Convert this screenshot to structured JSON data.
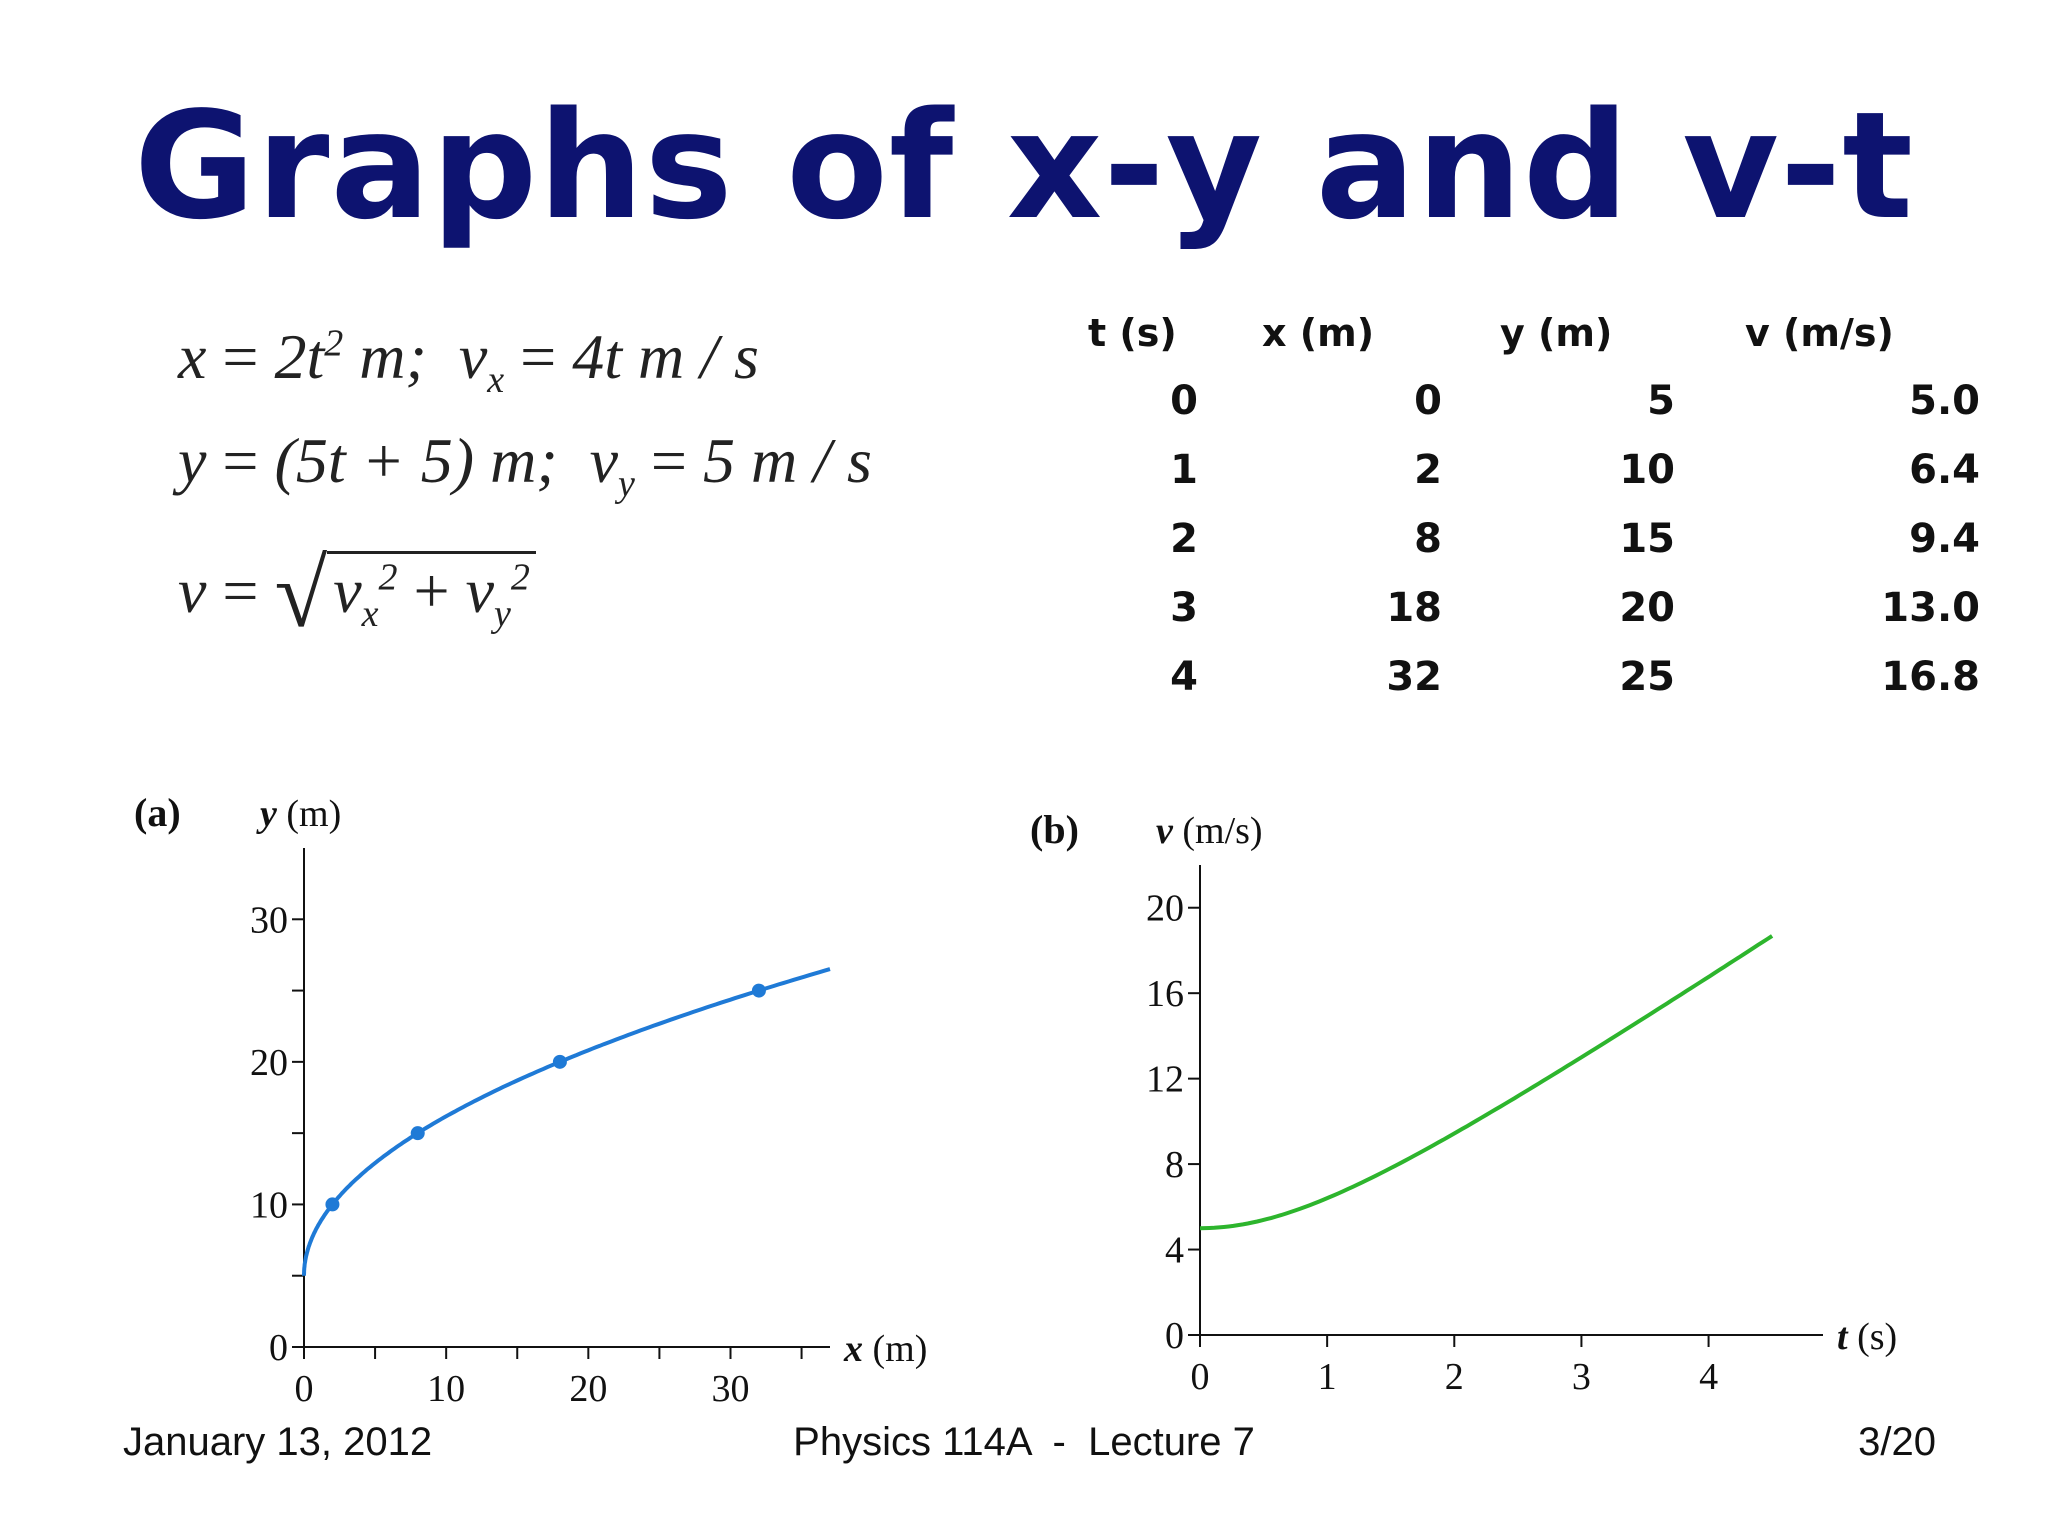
{
  "slide": {
    "title": "Graphs of x-y and v-t",
    "equations": {
      "x_lhs": "x",
      "x_rhs": "2t",
      "x_exp": "2",
      "x_unit": " m;",
      "vx_lhs": "v",
      "vx_sub": "x",
      "vx_rhs": "4t",
      "vx_unit": "m / s",
      "y_lhs": "y",
      "y_rhs": "(5t + 5)",
      "y_unit": "m;",
      "vy_lhs": "v",
      "vy_sub": "y",
      "vy_rhs": "5",
      "vy_unit": "m / s",
      "v_lhs": "v",
      "v_r1": "v",
      "v_r1_sub": "x",
      "v_r1_exp": "2",
      "v_plus": "+",
      "v_r2": "v",
      "v_r2_sub": "y",
      "v_r2_exp": "2"
    },
    "table": {
      "headers": [
        "t (s)",
        "x (m)",
        "y (m)",
        "v (m/s)"
      ],
      "rows": [
        [
          "0",
          "0",
          "5",
          "5.0"
        ],
        [
          "1",
          "2",
          "10",
          "6.4"
        ],
        [
          "2",
          "8",
          "15",
          "9.4"
        ],
        [
          "3",
          "18",
          "20",
          "13.0"
        ],
        [
          "4",
          "32",
          "25",
          "16.8"
        ]
      ]
    },
    "footer": {
      "date": "January 13, 2012",
      "course": "Physics 114A  -  Lecture 7",
      "page": "3/20"
    }
  },
  "chart_data": [
    {
      "type": "line",
      "panel_label": "(a)",
      "xlabel": "x (m)",
      "ylabel": "y (m)",
      "xlim": [
        0,
        37
      ],
      "ylim": [
        0,
        35
      ],
      "x_ticks": [
        0,
        10,
        20,
        30
      ],
      "y_ticks": [
        0,
        10,
        20,
        30
      ],
      "curve": "y = 5 + 5*sqrt(x/2)",
      "line_color": "#1f7ad6",
      "points": [
        {
          "x": 2,
          "y": 10
        },
        {
          "x": 8,
          "y": 15
        },
        {
          "x": 18,
          "y": 20
        },
        {
          "x": 32,
          "y": 25
        }
      ],
      "grid": false
    },
    {
      "type": "line",
      "panel_label": "(b)",
      "xlabel": "t (s)",
      "ylabel": "v (m/s)",
      "xlim": [
        0,
        4.9
      ],
      "ylim": [
        0,
        22
      ],
      "x_ticks": [
        0,
        1,
        2,
        3,
        4
      ],
      "y_ticks": [
        0,
        4,
        8,
        12,
        16,
        20
      ],
      "curve": "v = sqrt(16 t^2 + 25)",
      "t_range": [
        0,
        4.5
      ],
      "line_color": "#2db52d",
      "grid": false
    }
  ]
}
